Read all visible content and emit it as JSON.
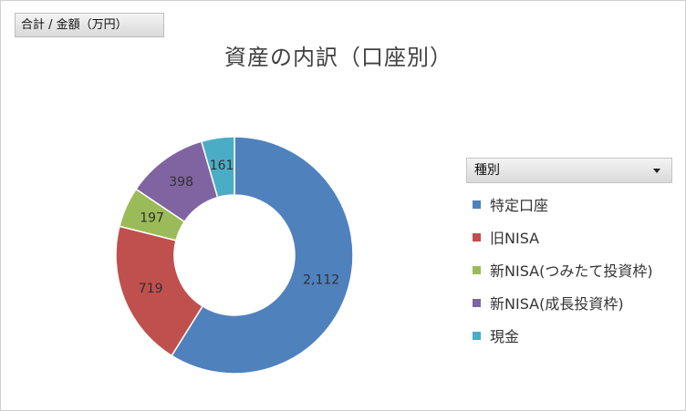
{
  "value_field": "合計 / 金額（万円）",
  "chart_data": {
    "type": "pie",
    "variant": "donut",
    "title": "資産の内訳（口座別）",
    "legend_title": "種別",
    "legend_position": "right",
    "categories": [
      "特定口座",
      "旧NISA",
      "新NISA(つみたて投資枠)",
      "新NISA(成長投資枠)",
      "現金"
    ],
    "values": [
      2112,
      719,
      197,
      398,
      161
    ],
    "value_labels": [
      "2,112",
      "719",
      "197",
      "398",
      "161"
    ],
    "colors": [
      "#4f81bd",
      "#c0504d",
      "#9bbb59",
      "#8064a2",
      "#4bacc6"
    ]
  },
  "legend": {
    "dropdown_icon": "chevron-down-icon"
  }
}
